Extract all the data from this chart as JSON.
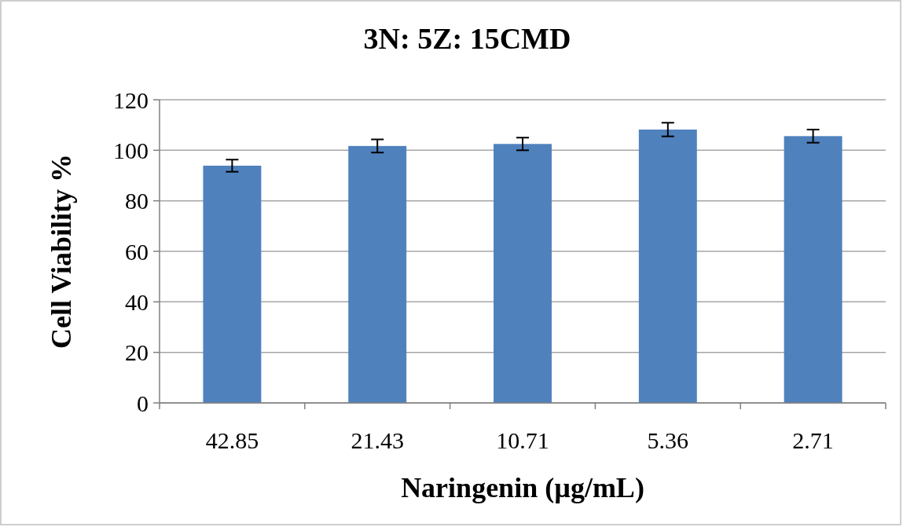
{
  "chart_data": {
    "type": "bar",
    "title": "3N: 5Z: 15CMD",
    "xlabel": "Naringenin (µg/mL)",
    "ylabel": "Cell Viability %",
    "categories": [
      "42.85",
      "21.43",
      "10.71",
      "5.36",
      "2.71"
    ],
    "values": [
      93.9,
      101.7,
      102.5,
      108.2,
      105.6
    ],
    "errors": [
      2.4,
      2.6,
      2.5,
      2.7,
      2.6
    ],
    "color": "#4f81bd",
    "ylim": [
      0,
      120
    ],
    "yticks": [
      0,
      20,
      40,
      60,
      80,
      100,
      120
    ],
    "grid": "y"
  }
}
